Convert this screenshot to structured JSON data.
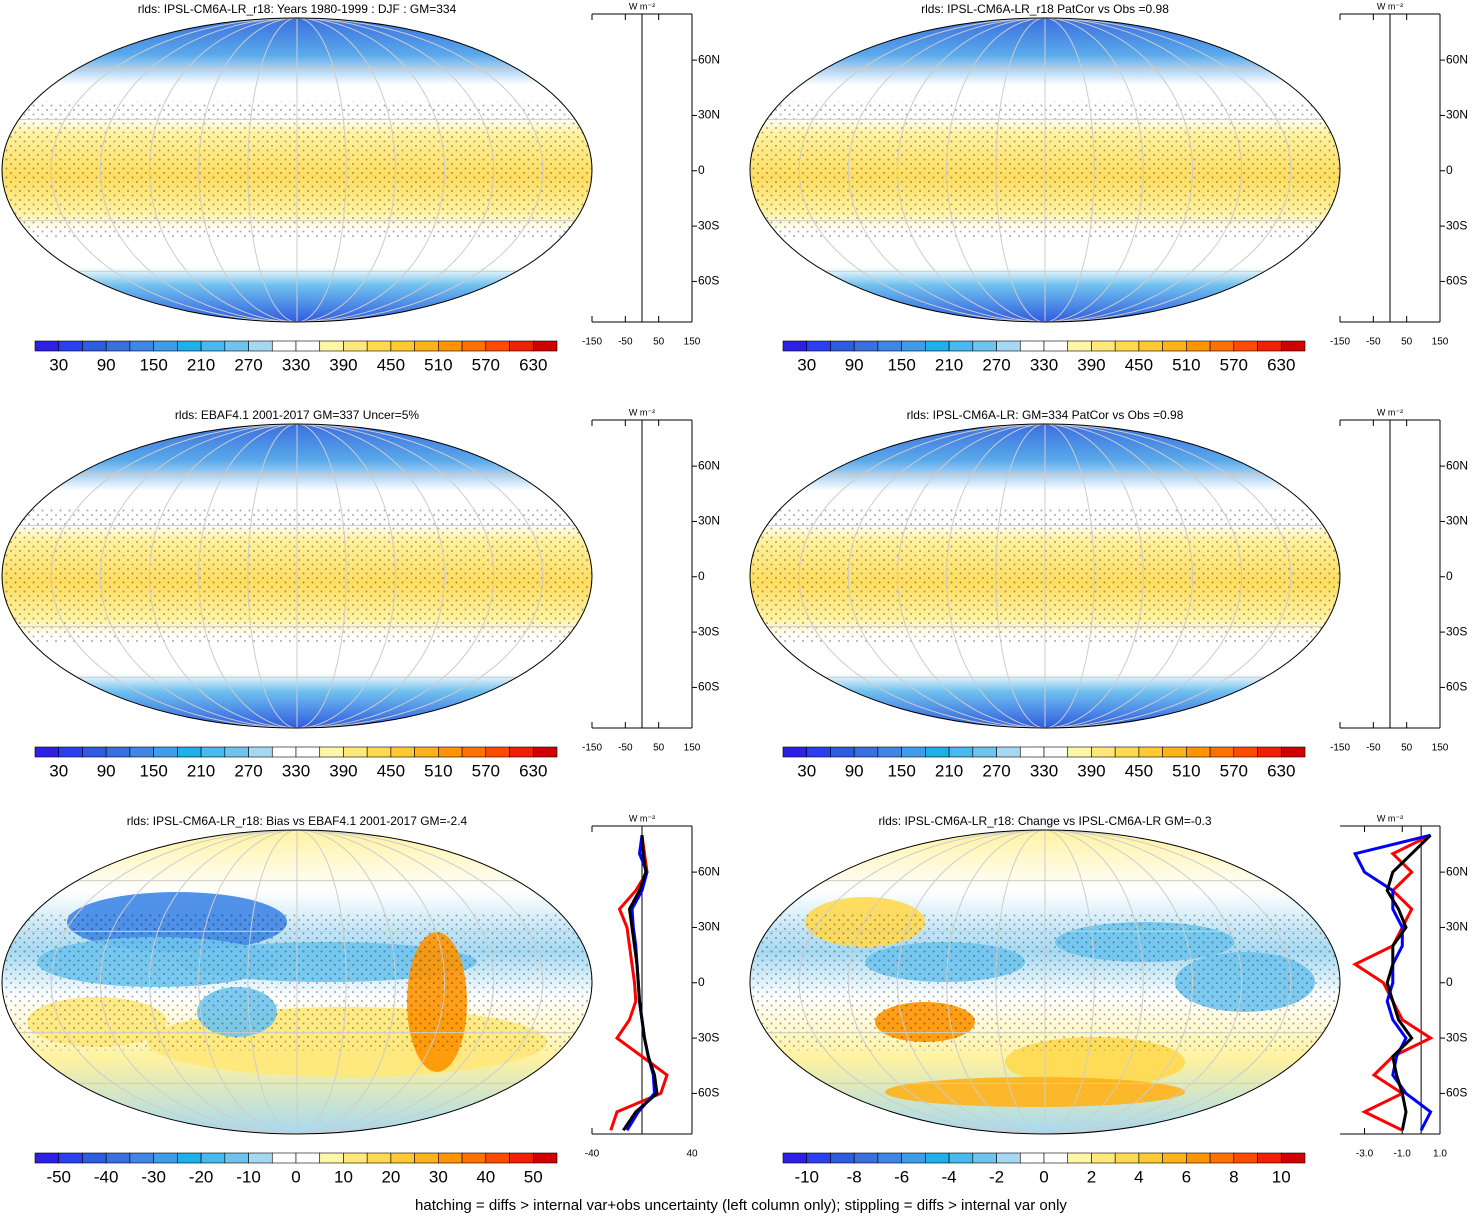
{
  "colormap": [
    "#2c1fe6",
    "#2a3ff0",
    "#2f5be0",
    "#3a6fe0",
    "#3f86e6",
    "#3f9ce8",
    "#1fb0ea",
    "#48b8ee",
    "#6fc4ee",
    "#a5d9f2",
    "#ffffff",
    "#ffffff",
    "#fff6a8",
    "#ffe87a",
    "#ffd94f",
    "#ffc933",
    "#ffb21a",
    "#ff9400",
    "#ff7100",
    "#ff4a00",
    "#f02000",
    "#d00000"
  ],
  "footer": "hatching = diffs > internal var+obs uncertainty (left column only); stippling = diffs > internal var only",
  "chart_data": [
    {
      "type": "map",
      "title": "rlds: IPSL-CM6A-LR_r18: Years 1980-1999 : DJF : GM=334",
      "colorbar_ticks": [
        30,
        90,
        150,
        210,
        270,
        330,
        390,
        450,
        510,
        570,
        630
      ],
      "zonal": {
        "type": "line",
        "unit_label": "W m⁻²",
        "xlim": [
          -150,
          150
        ],
        "xticks": [
          -150,
          -50,
          50,
          150
        ],
        "ylim": [
          -82,
          85
        ],
        "yticks": [
          {
            "value": 60,
            "label": "60N"
          },
          {
            "value": 30,
            "label": "30N"
          },
          0,
          {
            "value": -30,
            "label": "30S"
          },
          {
            "value": -60,
            "label": "60S"
          }
        ]
      }
    },
    {
      "type": "map",
      "title": "rlds: IPSL-CM6A-LR_r18 PatCor vs Obs =0.98",
      "colorbar_ticks": [
        30,
        90,
        150,
        210,
        270,
        330,
        390,
        450,
        510,
        570,
        630
      ],
      "zonal": {
        "type": "line",
        "unit_label": "W m⁻²",
        "xlim": [
          -150,
          150
        ],
        "xticks": [
          -150,
          -50,
          50,
          150
        ],
        "ylim": [
          -82,
          85
        ],
        "yticks": [
          {
            "value": 60,
            "label": "60N"
          },
          {
            "value": 30,
            "label": "30N"
          },
          0,
          {
            "value": -30,
            "label": "30S"
          },
          {
            "value": -60,
            "label": "60S"
          }
        ]
      }
    },
    {
      "type": "map",
      "title": "rlds: EBAF4.1 2001-2017 GM=337 Uncer=5%",
      "colorbar_ticks": [
        30,
        90,
        150,
        210,
        270,
        330,
        390,
        450,
        510,
        570,
        630
      ],
      "zonal": {
        "type": "line",
        "unit_label": "W m⁻²",
        "xlim": [
          -150,
          150
        ],
        "xticks": [
          -150,
          -50,
          50,
          150
        ],
        "ylim": [
          -82,
          85
        ],
        "yticks": [
          {
            "value": 60,
            "label": "60N"
          },
          {
            "value": 30,
            "label": "30N"
          },
          0,
          {
            "value": -30,
            "label": "30S"
          },
          {
            "value": -60,
            "label": "60S"
          }
        ]
      }
    },
    {
      "type": "map",
      "title": "rlds: IPSL-CM6A-LR: GM=334 PatCor vs Obs =0.98",
      "colorbar_ticks": [
        30,
        90,
        150,
        210,
        270,
        330,
        390,
        450,
        510,
        570,
        630
      ],
      "zonal": {
        "type": "line",
        "unit_label": "W m⁻²",
        "xlim": [
          -150,
          150
        ],
        "xticks": [
          -150,
          -50,
          50,
          150
        ],
        "ylim": [
          -82,
          85
        ],
        "yticks": [
          {
            "value": 60,
            "label": "60N"
          },
          {
            "value": 30,
            "label": "30N"
          },
          0,
          {
            "value": -30,
            "label": "30S"
          },
          {
            "value": -60,
            "label": "60S"
          }
        ]
      }
    },
    {
      "type": "map",
      "title": "rlds: IPSL-CM6A-LR_r18: Bias vs EBAF4.1 2001-2017 GM=-2.4",
      "colorbar_ticks": [
        -50,
        -40,
        -30,
        -20,
        -10,
        0,
        10,
        20,
        30,
        40,
        50
      ],
      "zonal": {
        "type": "line",
        "unit_label": "W m⁻²",
        "xlim": [
          -40,
          40
        ],
        "xticks": [
          -40,
          40
        ],
        "ylim": [
          -82,
          85
        ],
        "yticks": [
          {
            "value": 60,
            "label": "60N"
          },
          {
            "value": 30,
            "label": "30N"
          },
          0,
          {
            "value": -30,
            "label": "30S"
          },
          {
            "value": -60,
            "label": "60S"
          }
        ],
        "y": [
          80,
          70,
          60,
          50,
          40,
          30,
          20,
          10,
          0,
          -10,
          -20,
          -30,
          -40,
          -50,
          -60,
          -70,
          -80
        ],
        "series": [
          {
            "color": "#ff0000",
            "values": [
              0,
              2,
              4,
              -5,
              -18,
              -12,
              -10,
              -8,
              -6,
              -5,
              -10,
              -20,
              0,
              20,
              15,
              -20,
              -25
            ]
          },
          {
            "color": "#0000ff",
            "values": [
              0,
              -2,
              4,
              0,
              -8,
              -7,
              -5,
              -4,
              -3,
              -2,
              0,
              2,
              5,
              9,
              10,
              -3,
              -12
            ]
          },
          {
            "color": "#000000",
            "values": [
              0,
              1,
              3,
              -2,
              -10,
              -8,
              -6,
              -4,
              -3,
              -2,
              0,
              2,
              5,
              10,
              12,
              -5,
              -15
            ]
          }
        ]
      }
    },
    {
      "type": "map",
      "title": "rlds: IPSL-CM6A-LR_r18: Change vs IPSL-CM6A-LR GM=-0.3",
      "colorbar_ticks": [
        -10,
        -8,
        -6,
        -4,
        -2,
        0,
        2,
        4,
        6,
        8,
        10
      ],
      "zonal": {
        "type": "line",
        "unit_label": "W m⁻²",
        "xlim": [
          -4.3,
          1.0
        ],
        "xticks": [
          {
            "value": -3,
            "label": "-3.0"
          },
          {
            "value": -1,
            "label": "-1.0"
          },
          {
            "value": 1,
            "label": "1.0"
          }
        ],
        "ylim": [
          -82,
          85
        ],
        "yticks": [
          {
            "value": 60,
            "label": "60N"
          },
          {
            "value": 30,
            "label": "30N"
          },
          0,
          {
            "value": -30,
            "label": "30S"
          },
          {
            "value": -60,
            "label": "60S"
          }
        ],
        "y": [
          80,
          70,
          60,
          50,
          40,
          30,
          20,
          10,
          0,
          -10,
          -20,
          -30,
          -40,
          -50,
          -60,
          -70,
          -80
        ],
        "series": [
          {
            "color": "#ff0000",
            "values": [
              0.5,
              -1.5,
              -0.5,
              -1.5,
              -0.5,
              -1.0,
              -1.5,
              -3.5,
              -2.0,
              -1.5,
              -1.0,
              0.5,
              -1.5,
              -2.5,
              -1.0,
              -3.0,
              -1.0
            ]
          },
          {
            "color": "#0000ff",
            "values": [
              0.5,
              -3.5,
              -3.0,
              -1.5,
              -1.5,
              -1.0,
              -1.0,
              -1.5,
              -1.5,
              -1.8,
              -1.5,
              -0.8,
              -1.3,
              -1.5,
              -0.8,
              0.5,
              0.0
            ]
          },
          {
            "color": "#000000",
            "values": [
              0.5,
              -0.5,
              -1.5,
              -1.8,
              -1.2,
              -0.8,
              -1.5,
              -1.5,
              -1.8,
              -1.5,
              -1.2,
              -0.5,
              -1.5,
              -1.3,
              -1.0,
              -0.8,
              -1.0
            ]
          }
        ]
      }
    }
  ]
}
